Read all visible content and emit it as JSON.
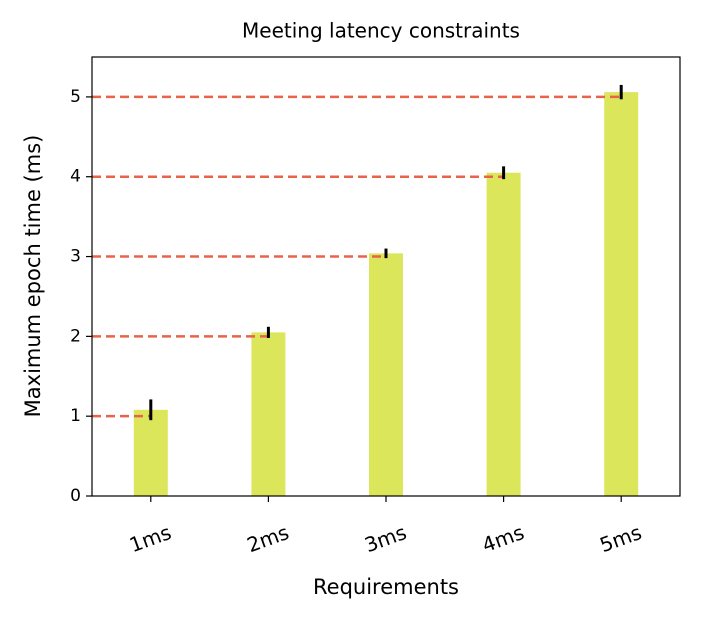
{
  "chart_data": {
    "type": "bar",
    "title": "Meeting latency constraints",
    "x_label": "Requirements",
    "y_label": "Maximum epoch time (ms)",
    "categories": [
      "1ms",
      "2ms",
      "3ms",
      "4ms",
      "5ms"
    ],
    "values": [
      1.08,
      2.05,
      3.04,
      4.05,
      5.06
    ],
    "errors": [
      0.13,
      0.07,
      0.06,
      0.08,
      0.09
    ],
    "color": "#dce65a",
    "error_color": "#000000",
    "reference_values": [
      1,
      2,
      3,
      4,
      5
    ],
    "reference_color": "#e8634a",
    "ylim": [
      0,
      5.5
    ],
    "yticks": [
      0,
      1,
      2,
      3,
      4,
      5
    ]
  }
}
